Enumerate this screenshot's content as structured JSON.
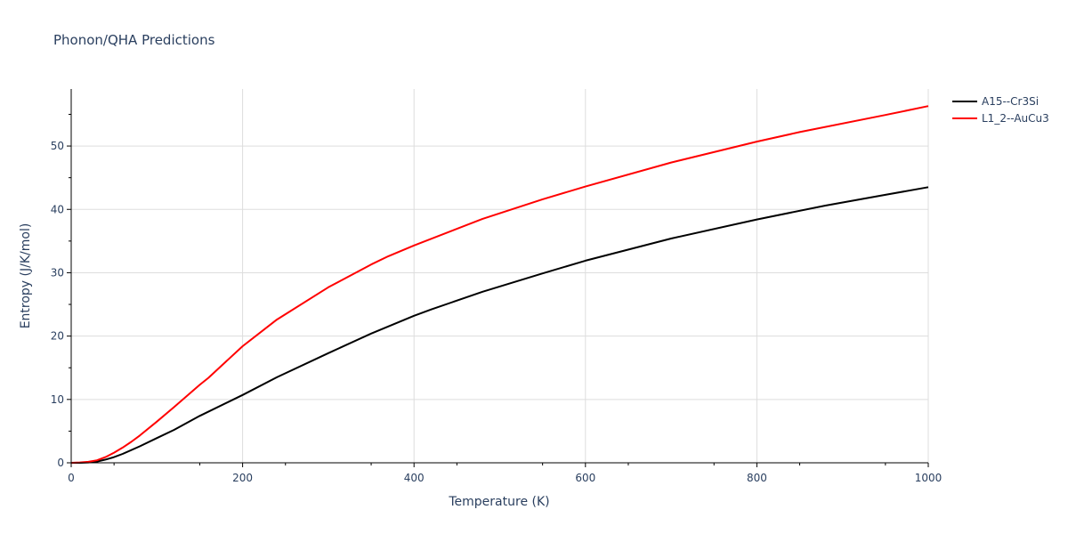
{
  "chart_data": {
    "type": "line",
    "title": "Phonon/QHA Predictions",
    "xlabel": "Temperature (K)",
    "ylabel": "Entropy (J/K/mol)",
    "xlim": [
      0,
      1000
    ],
    "ylim": [
      0,
      59
    ],
    "xticks": [
      0,
      200,
      400,
      600,
      800,
      1000
    ],
    "yticks": [
      0,
      10,
      20,
      30,
      40,
      50
    ],
    "grid": true,
    "legend_position": "top-right",
    "series": [
      {
        "name": "A15--Cr3Si",
        "color": "#000000",
        "x": [
          0,
          10,
          20,
          30,
          40,
          50,
          60,
          80,
          100,
          120,
          150,
          200,
          240,
          300,
          350,
          400,
          420,
          480,
          550,
          600,
          700,
          800,
          880,
          950,
          1000
        ],
        "y": [
          0,
          0.0,
          0.05,
          0.2,
          0.5,
          0.9,
          1.4,
          2.6,
          3.9,
          5.2,
          7.4,
          10.7,
          13.5,
          17.3,
          20.4,
          23.2,
          24.2,
          27.0,
          29.9,
          31.9,
          35.4,
          38.4,
          40.6,
          42.3,
          43.5
        ]
      },
      {
        "name": "L1_2--AuCu3",
        "color": "#ff0000",
        "x": [
          0,
          10,
          20,
          30,
          40,
          50,
          60,
          70,
          80,
          100,
          120,
          150,
          160,
          200,
          240,
          300,
          350,
          370,
          400,
          480,
          550,
          600,
          700,
          800,
          850,
          950,
          1000
        ],
        "y": [
          0,
          0.05,
          0.15,
          0.4,
          0.9,
          1.6,
          2.4,
          3.3,
          4.3,
          6.5,
          8.8,
          12.3,
          13.4,
          18.4,
          22.6,
          27.7,
          31.3,
          32.6,
          34.3,
          38.5,
          41.6,
          43.6,
          47.4,
          50.7,
          52.2,
          54.9,
          56.3
        ]
      }
    ]
  }
}
